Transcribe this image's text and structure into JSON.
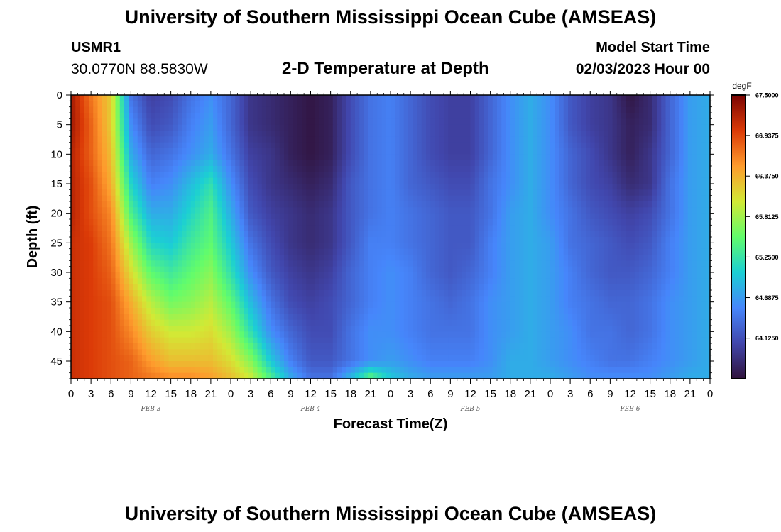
{
  "header": {
    "title": "University of Southern Mississippi Ocean Cube (AMSEAS)",
    "station": "USMR1",
    "coords": "30.0770N  88.5830W",
    "subtitle": "2-D Temperature at Depth",
    "model_start_label": "Model Start Time",
    "model_start_value": "02/03/2023 Hour 00"
  },
  "footer": {
    "title": "University of Southern Mississippi Ocean Cube (AMSEAS)"
  },
  "colors": {
    "colormap": [
      "#30123b",
      "#4146ac",
      "#4686fb",
      "#1bcfd4",
      "#62fc6b",
      "#d2e935",
      "#fe9b2d",
      "#db3a07",
      "#7a0403"
    ]
  },
  "chart_data": {
    "type": "heatmap",
    "title": "2-D Temperature at Depth",
    "xlabel": "Forecast Time(Z)",
    "ylabel": "Depth (ft)",
    "x_range_hours": [
      0,
      96
    ],
    "y_range_ft": [
      0,
      48
    ],
    "x_tick_labels": [
      "0",
      "3",
      "6",
      "9",
      "12",
      "15",
      "18",
      "21",
      "0",
      "3",
      "6",
      "9",
      "12",
      "15",
      "18",
      "21",
      "0",
      "3",
      "6",
      "9",
      "12",
      "15",
      "18",
      "21",
      "0",
      "3",
      "6",
      "9",
      "12",
      "15",
      "18",
      "21",
      "0"
    ],
    "y_tick_labels": [
      "0",
      "5",
      "10",
      "15",
      "20",
      "25",
      "30",
      "35",
      "40",
      "45"
    ],
    "y_tick_values": [
      0,
      5,
      10,
      15,
      20,
      25,
      30,
      35,
      40,
      45
    ],
    "date_labels": [
      {
        "text": "FEB 3",
        "hour": 12
      },
      {
        "text": "FEB 4",
        "hour": 36
      },
      {
        "text": "FEB 5",
        "hour": 60
      },
      {
        "text": "FEB 6",
        "hour": 84
      }
    ],
    "colorbar": {
      "unit": "degF",
      "min": 63.56,
      "max": 67.5,
      "tick_values": [
        67.5,
        66.9375,
        66.375,
        65.8125,
        65.25,
        64.6875,
        64.125
      ],
      "tick_labels": [
        "67.5000",
        "66.9375",
        "66.3750",
        "65.8125",
        "65.2500",
        "64.6875",
        "64.1250"
      ]
    },
    "depths_ft": [
      0,
      5,
      10,
      15,
      20,
      25,
      30,
      35,
      40,
      45,
      48
    ],
    "hours": [
      0,
      3,
      6,
      9,
      12,
      15,
      18,
      21,
      24,
      27,
      30,
      33,
      36,
      39,
      42,
      45,
      48,
      51,
      54,
      57,
      60,
      63,
      66,
      69,
      72,
      75,
      78,
      81,
      84,
      87,
      90,
      93,
      96
    ],
    "temperature_degF": [
      [
        67.3,
        66.7,
        66.2,
        64.4,
        64.0,
        64.1,
        64.4,
        64.6,
        64.3,
        63.9,
        63.8,
        63.7,
        63.6,
        63.7,
        64.1,
        64.4,
        64.5,
        64.3,
        64.1,
        64.0,
        64.0,
        64.3,
        64.6,
        64.8,
        64.6,
        64.2,
        64.0,
        63.9,
        63.6,
        63.8,
        64.3,
        64.7,
        64.8
      ],
      [
        67.3,
        66.8,
        66.2,
        64.6,
        64.1,
        64.2,
        64.5,
        64.7,
        64.3,
        63.9,
        63.8,
        63.7,
        63.6,
        63.7,
        64.1,
        64.4,
        64.5,
        64.3,
        64.1,
        64.0,
        64.0,
        64.3,
        64.6,
        64.8,
        64.6,
        64.2,
        64.0,
        63.9,
        63.7,
        63.8,
        64.3,
        64.7,
        64.8
      ],
      [
        67.2,
        66.8,
        66.3,
        64.8,
        64.3,
        64.4,
        64.6,
        64.8,
        64.4,
        64.0,
        63.9,
        63.7,
        63.6,
        63.7,
        64.1,
        64.4,
        64.5,
        64.3,
        64.1,
        64.0,
        64.0,
        64.3,
        64.6,
        64.8,
        64.6,
        64.3,
        64.1,
        63.9,
        63.7,
        63.9,
        64.3,
        64.7,
        64.8
      ],
      [
        67.2,
        66.9,
        66.4,
        65.1,
        64.5,
        64.6,
        64.9,
        65.2,
        64.6,
        64.1,
        63.9,
        63.8,
        63.7,
        63.8,
        64.2,
        64.4,
        64.5,
        64.3,
        64.2,
        64.1,
        64.1,
        64.4,
        64.6,
        64.8,
        64.6,
        64.3,
        64.1,
        64.0,
        63.8,
        63.9,
        64.4,
        64.7,
        64.8
      ],
      [
        67.2,
        66.9,
        66.6,
        65.4,
        64.8,
        64.8,
        65.1,
        65.4,
        64.8,
        64.2,
        64.0,
        63.9,
        63.8,
        63.9,
        64.2,
        64.4,
        64.5,
        64.4,
        64.3,
        64.2,
        64.2,
        64.4,
        64.7,
        64.8,
        64.6,
        64.4,
        64.2,
        64.1,
        64.0,
        64.1,
        64.4,
        64.7,
        64.8
      ],
      [
        67.1,
        67.0,
        66.7,
        65.8,
        65.1,
        65.0,
        65.3,
        65.5,
        65.0,
        64.4,
        64.1,
        63.9,
        63.8,
        63.9,
        64.2,
        64.5,
        64.5,
        64.4,
        64.3,
        64.2,
        64.2,
        64.5,
        64.7,
        64.8,
        64.7,
        64.4,
        64.3,
        64.2,
        64.1,
        64.2,
        64.5,
        64.7,
        64.8
      ],
      [
        67.1,
        67.0,
        66.8,
        66.1,
        65.5,
        65.3,
        65.5,
        65.7,
        65.2,
        64.6,
        64.2,
        64.0,
        63.9,
        64.0,
        64.3,
        64.5,
        64.6,
        64.5,
        64.3,
        64.2,
        64.3,
        64.5,
        64.7,
        64.8,
        64.7,
        64.5,
        64.3,
        64.2,
        64.2,
        64.3,
        64.5,
        64.7,
        64.8
      ],
      [
        67.1,
        67.0,
        66.9,
        66.4,
        65.9,
        65.6,
        65.7,
        65.9,
        65.5,
        64.9,
        64.4,
        64.1,
        64.0,
        64.1,
        64.3,
        64.5,
        64.6,
        64.5,
        64.4,
        64.3,
        64.4,
        64.6,
        64.7,
        64.8,
        64.7,
        64.5,
        64.4,
        64.3,
        64.3,
        64.4,
        64.6,
        64.7,
        64.8
      ],
      [
        67.1,
        67.0,
        66.9,
        66.6,
        66.2,
        66.0,
        66.0,
        66.1,
        65.8,
        65.2,
        64.6,
        64.3,
        64.1,
        64.1,
        64.4,
        64.6,
        64.6,
        64.5,
        64.4,
        64.4,
        64.4,
        64.6,
        64.7,
        64.8,
        64.7,
        64.6,
        64.4,
        64.4,
        64.3,
        64.4,
        64.6,
        64.7,
        64.8
      ],
      [
        67.1,
        67.0,
        66.9,
        66.8,
        66.5,
        66.3,
        66.3,
        66.3,
        66.1,
        65.7,
        65.0,
        64.5,
        64.2,
        64.2,
        64.4,
        64.6,
        64.7,
        64.6,
        64.5,
        64.5,
        64.5,
        64.6,
        64.8,
        64.8,
        64.7,
        64.6,
        64.5,
        64.4,
        64.4,
        64.5,
        64.6,
        64.7,
        64.8
      ],
      [
        67.1,
        67.0,
        66.9,
        66.8,
        66.7,
        66.6,
        66.6,
        66.5,
        66.3,
        66.0,
        65.4,
        64.8,
        64.4,
        64.4,
        64.9,
        65.5,
        65.0,
        64.8,
        64.7,
        64.7,
        64.7,
        64.7,
        64.8,
        64.8,
        64.8,
        64.7,
        64.6,
        64.6,
        64.6,
        64.6,
        64.7,
        64.8,
        64.8
      ]
    ]
  }
}
